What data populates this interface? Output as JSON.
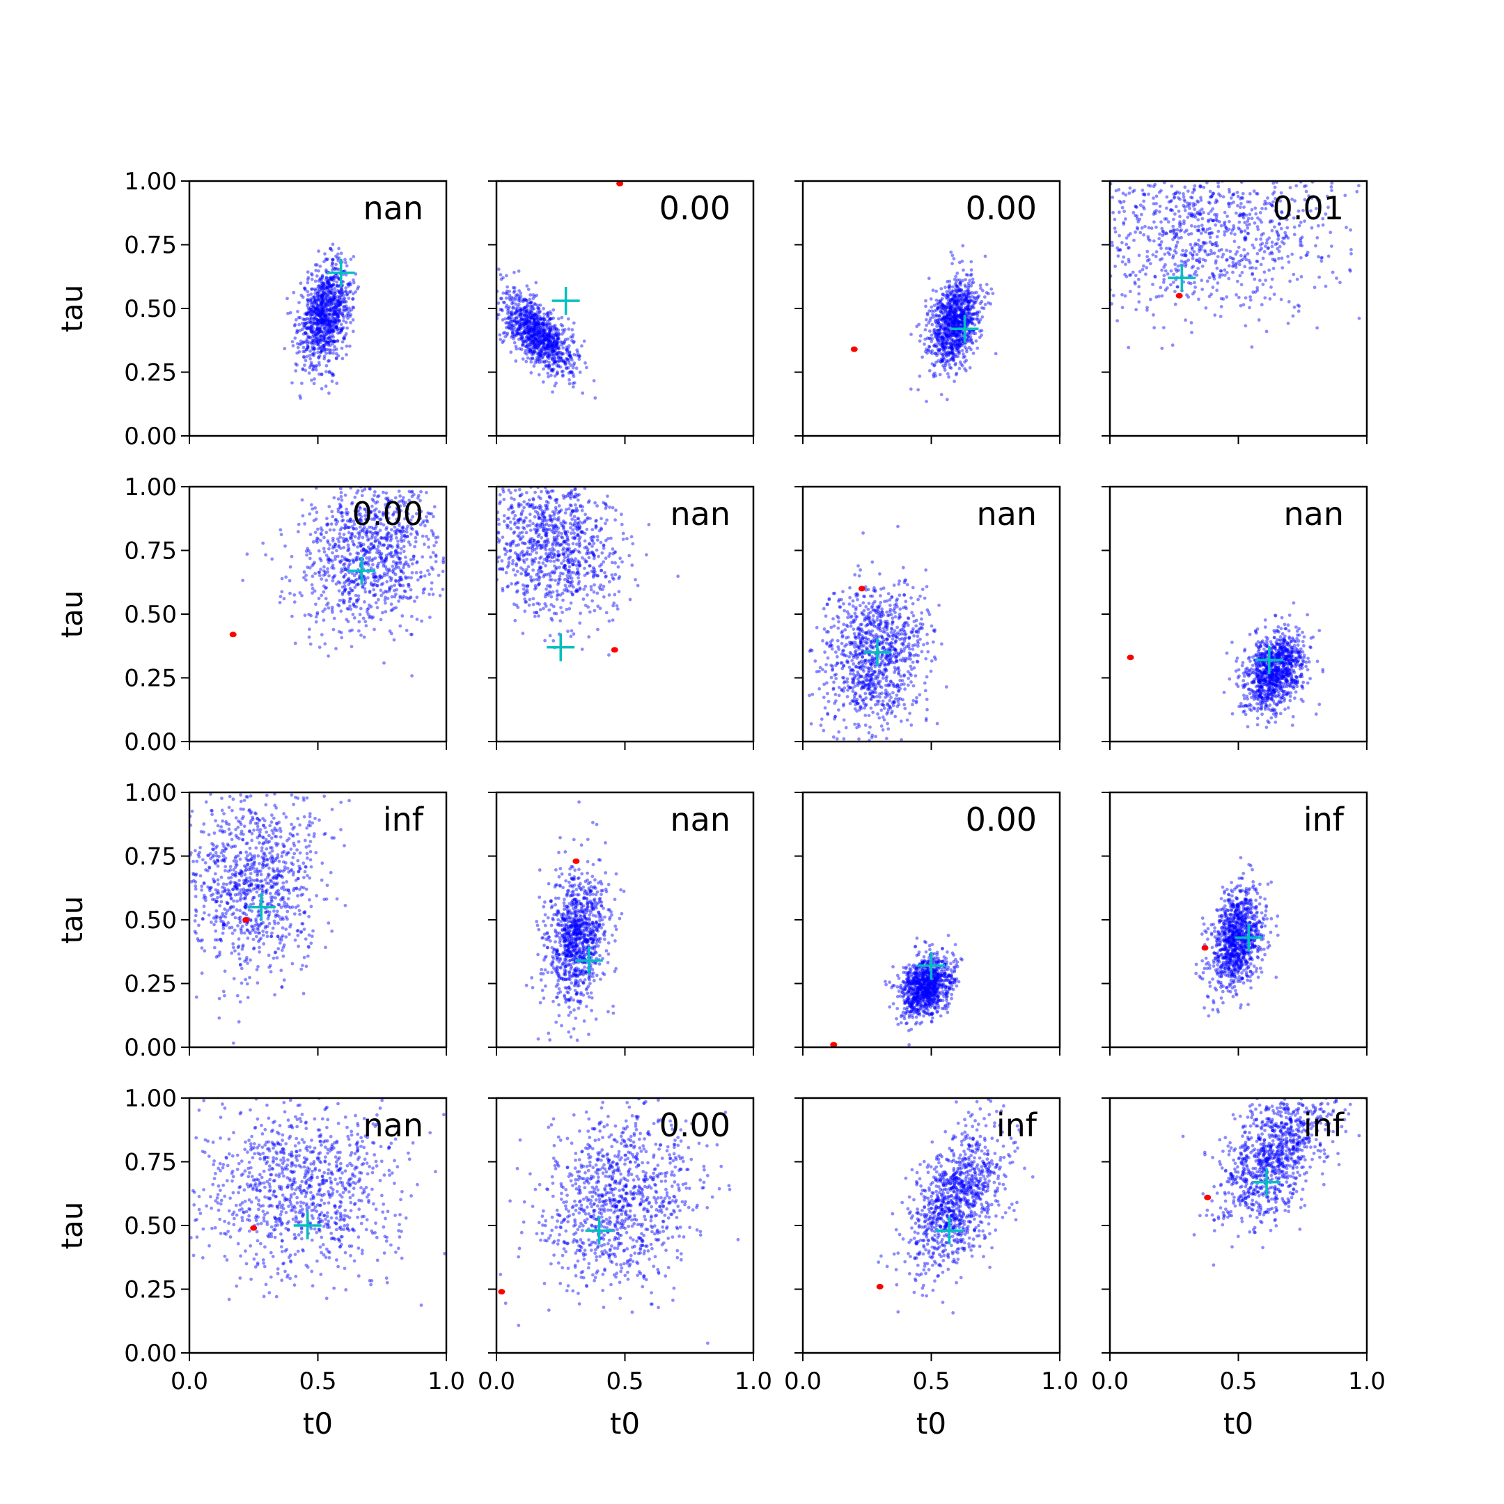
{
  "chart_data": {
    "type": "scatter",
    "layout": {
      "rows": 4,
      "cols": 4,
      "sharex": true,
      "sharey": true
    },
    "xlabel": "t0",
    "ylabel": "tau",
    "xlim": [
      0,
      1
    ],
    "ylim": [
      0,
      1
    ],
    "xticks": [
      0.0,
      0.5,
      1.0
    ],
    "xtick_labels": [
      "0.0",
      "0.5",
      "1.0"
    ],
    "yticks": [
      0.0,
      0.25,
      0.5,
      0.75,
      1.0
    ],
    "ytick_labels": [
      "0.00",
      "0.25",
      "0.50",
      "0.75",
      "1.00"
    ],
    "colors": {
      "samples": "#0000ff",
      "estimate": "#00bfbf",
      "truth": "#ff0000"
    },
    "samples_per_panel": 1000,
    "panels": [
      {
        "annotation": "nan",
        "cloud": {
          "mx": 0.53,
          "my": 0.48,
          "sx": 0.05,
          "sy": 0.1,
          "rho": 0.3
        },
        "estimate": {
          "t0": 0.59,
          "tau": 0.64
        },
        "truth": null
      },
      {
        "annotation": "0.00",
        "cloud": {
          "mx": 0.16,
          "my": 0.4,
          "sx": 0.07,
          "sy": 0.08,
          "rho": -0.65
        },
        "estimate": {
          "t0": 0.27,
          "tau": 0.53
        },
        "truth": {
          "t0": 0.48,
          "tau": 0.99
        }
      },
      {
        "annotation": "0.00",
        "cloud": {
          "mx": 0.59,
          "my": 0.44,
          "sx": 0.05,
          "sy": 0.09,
          "rho": 0.3
        },
        "estimate": {
          "t0": 0.63,
          "tau": 0.42
        },
        "truth": {
          "t0": 0.2,
          "tau": 0.34
        }
      },
      {
        "annotation": "0.01",
        "cloud": {
          "mx": 0.38,
          "my": 0.82,
          "sx": 0.24,
          "sy": 0.17,
          "rho": 0.1
        },
        "estimate": {
          "t0": 0.28,
          "tau": 0.62
        },
        "truth": {
          "t0": 0.27,
          "tau": 0.55
        }
      },
      {
        "annotation": "0.00",
        "cloud": {
          "mx": 0.7,
          "my": 0.74,
          "sx": 0.14,
          "sy": 0.15,
          "rho": 0.1
        },
        "estimate": {
          "t0": 0.67,
          "tau": 0.67
        },
        "truth": {
          "t0": 0.17,
          "tau": 0.42
        }
      },
      {
        "annotation": "nan",
        "cloud": {
          "mx": 0.22,
          "my": 0.77,
          "sx": 0.13,
          "sy": 0.15,
          "rho": -0.1
        },
        "estimate": {
          "t0": 0.25,
          "tau": 0.37
        },
        "truth": {
          "t0": 0.46,
          "tau": 0.36
        }
      },
      {
        "annotation": "nan",
        "cloud": {
          "mx": 0.28,
          "my": 0.34,
          "sx": 0.1,
          "sy": 0.14,
          "rho": 0.1
        },
        "estimate": {
          "t0": 0.29,
          "tau": 0.35
        },
        "truth": {
          "t0": 0.23,
          "tau": 0.6
        }
      },
      {
        "annotation": "nan",
        "cloud": {
          "mx": 0.64,
          "my": 0.28,
          "sx": 0.06,
          "sy": 0.08,
          "rho": 0.3
        },
        "estimate": {
          "t0": 0.62,
          "tau": 0.32
        },
        "truth": {
          "t0": 0.08,
          "tau": 0.33
        }
      },
      {
        "annotation": "inf",
        "cloud": {
          "mx": 0.25,
          "my": 0.66,
          "sx": 0.13,
          "sy": 0.18,
          "rho": 0.1
        },
        "estimate": {
          "t0": 0.28,
          "tau": 0.55
        },
        "truth": {
          "t0": 0.22,
          "tau": 0.5
        }
      },
      {
        "annotation": "nan",
        "cloud": {
          "mx": 0.31,
          "my": 0.42,
          "sx": 0.06,
          "sy": 0.14,
          "rho": 0.2
        },
        "estimate": {
          "t0": 0.36,
          "tau": 0.34
        },
        "truth": {
          "t0": 0.31,
          "tau": 0.73
        }
      },
      {
        "annotation": "0.00",
        "cloud": {
          "mx": 0.48,
          "my": 0.24,
          "sx": 0.05,
          "sy": 0.06,
          "rho": 0.3
        },
        "estimate": {
          "t0": 0.5,
          "tau": 0.32
        },
        "truth": {
          "t0": 0.12,
          "tau": 0.01
        }
      },
      {
        "annotation": "inf",
        "cloud": {
          "mx": 0.49,
          "my": 0.42,
          "sx": 0.05,
          "sy": 0.1,
          "rho": 0.3
        },
        "estimate": {
          "t0": 0.54,
          "tau": 0.43
        },
        "truth": {
          "t0": 0.37,
          "tau": 0.39
        }
      },
      {
        "annotation": "nan",
        "cloud": {
          "mx": 0.42,
          "my": 0.65,
          "sx": 0.2,
          "sy": 0.17,
          "rho": 0.0
        },
        "estimate": {
          "t0": 0.46,
          "tau": 0.5
        },
        "truth": {
          "t0": 0.25,
          "tau": 0.49
        }
      },
      {
        "annotation": "0.00",
        "cloud": {
          "mx": 0.48,
          "my": 0.6,
          "sx": 0.15,
          "sy": 0.17,
          "rho": 0.1
        },
        "estimate": {
          "t0": 0.4,
          "tau": 0.48
        },
        "truth": {
          "t0": 0.02,
          "tau": 0.24
        }
      },
      {
        "annotation": "inf",
        "cloud": {
          "mx": 0.6,
          "my": 0.6,
          "sx": 0.09,
          "sy": 0.14,
          "rho": 0.5
        },
        "estimate": {
          "t0": 0.57,
          "tau": 0.48
        },
        "truth": {
          "t0": 0.3,
          "tau": 0.26
        }
      },
      {
        "annotation": "inf",
        "cloud": {
          "mx": 0.64,
          "my": 0.78,
          "sx": 0.11,
          "sy": 0.14,
          "rho": 0.55
        },
        "estimate": {
          "t0": 0.61,
          "tau": 0.67
        },
        "truth": {
          "t0": 0.38,
          "tau": 0.61
        }
      }
    ]
  }
}
